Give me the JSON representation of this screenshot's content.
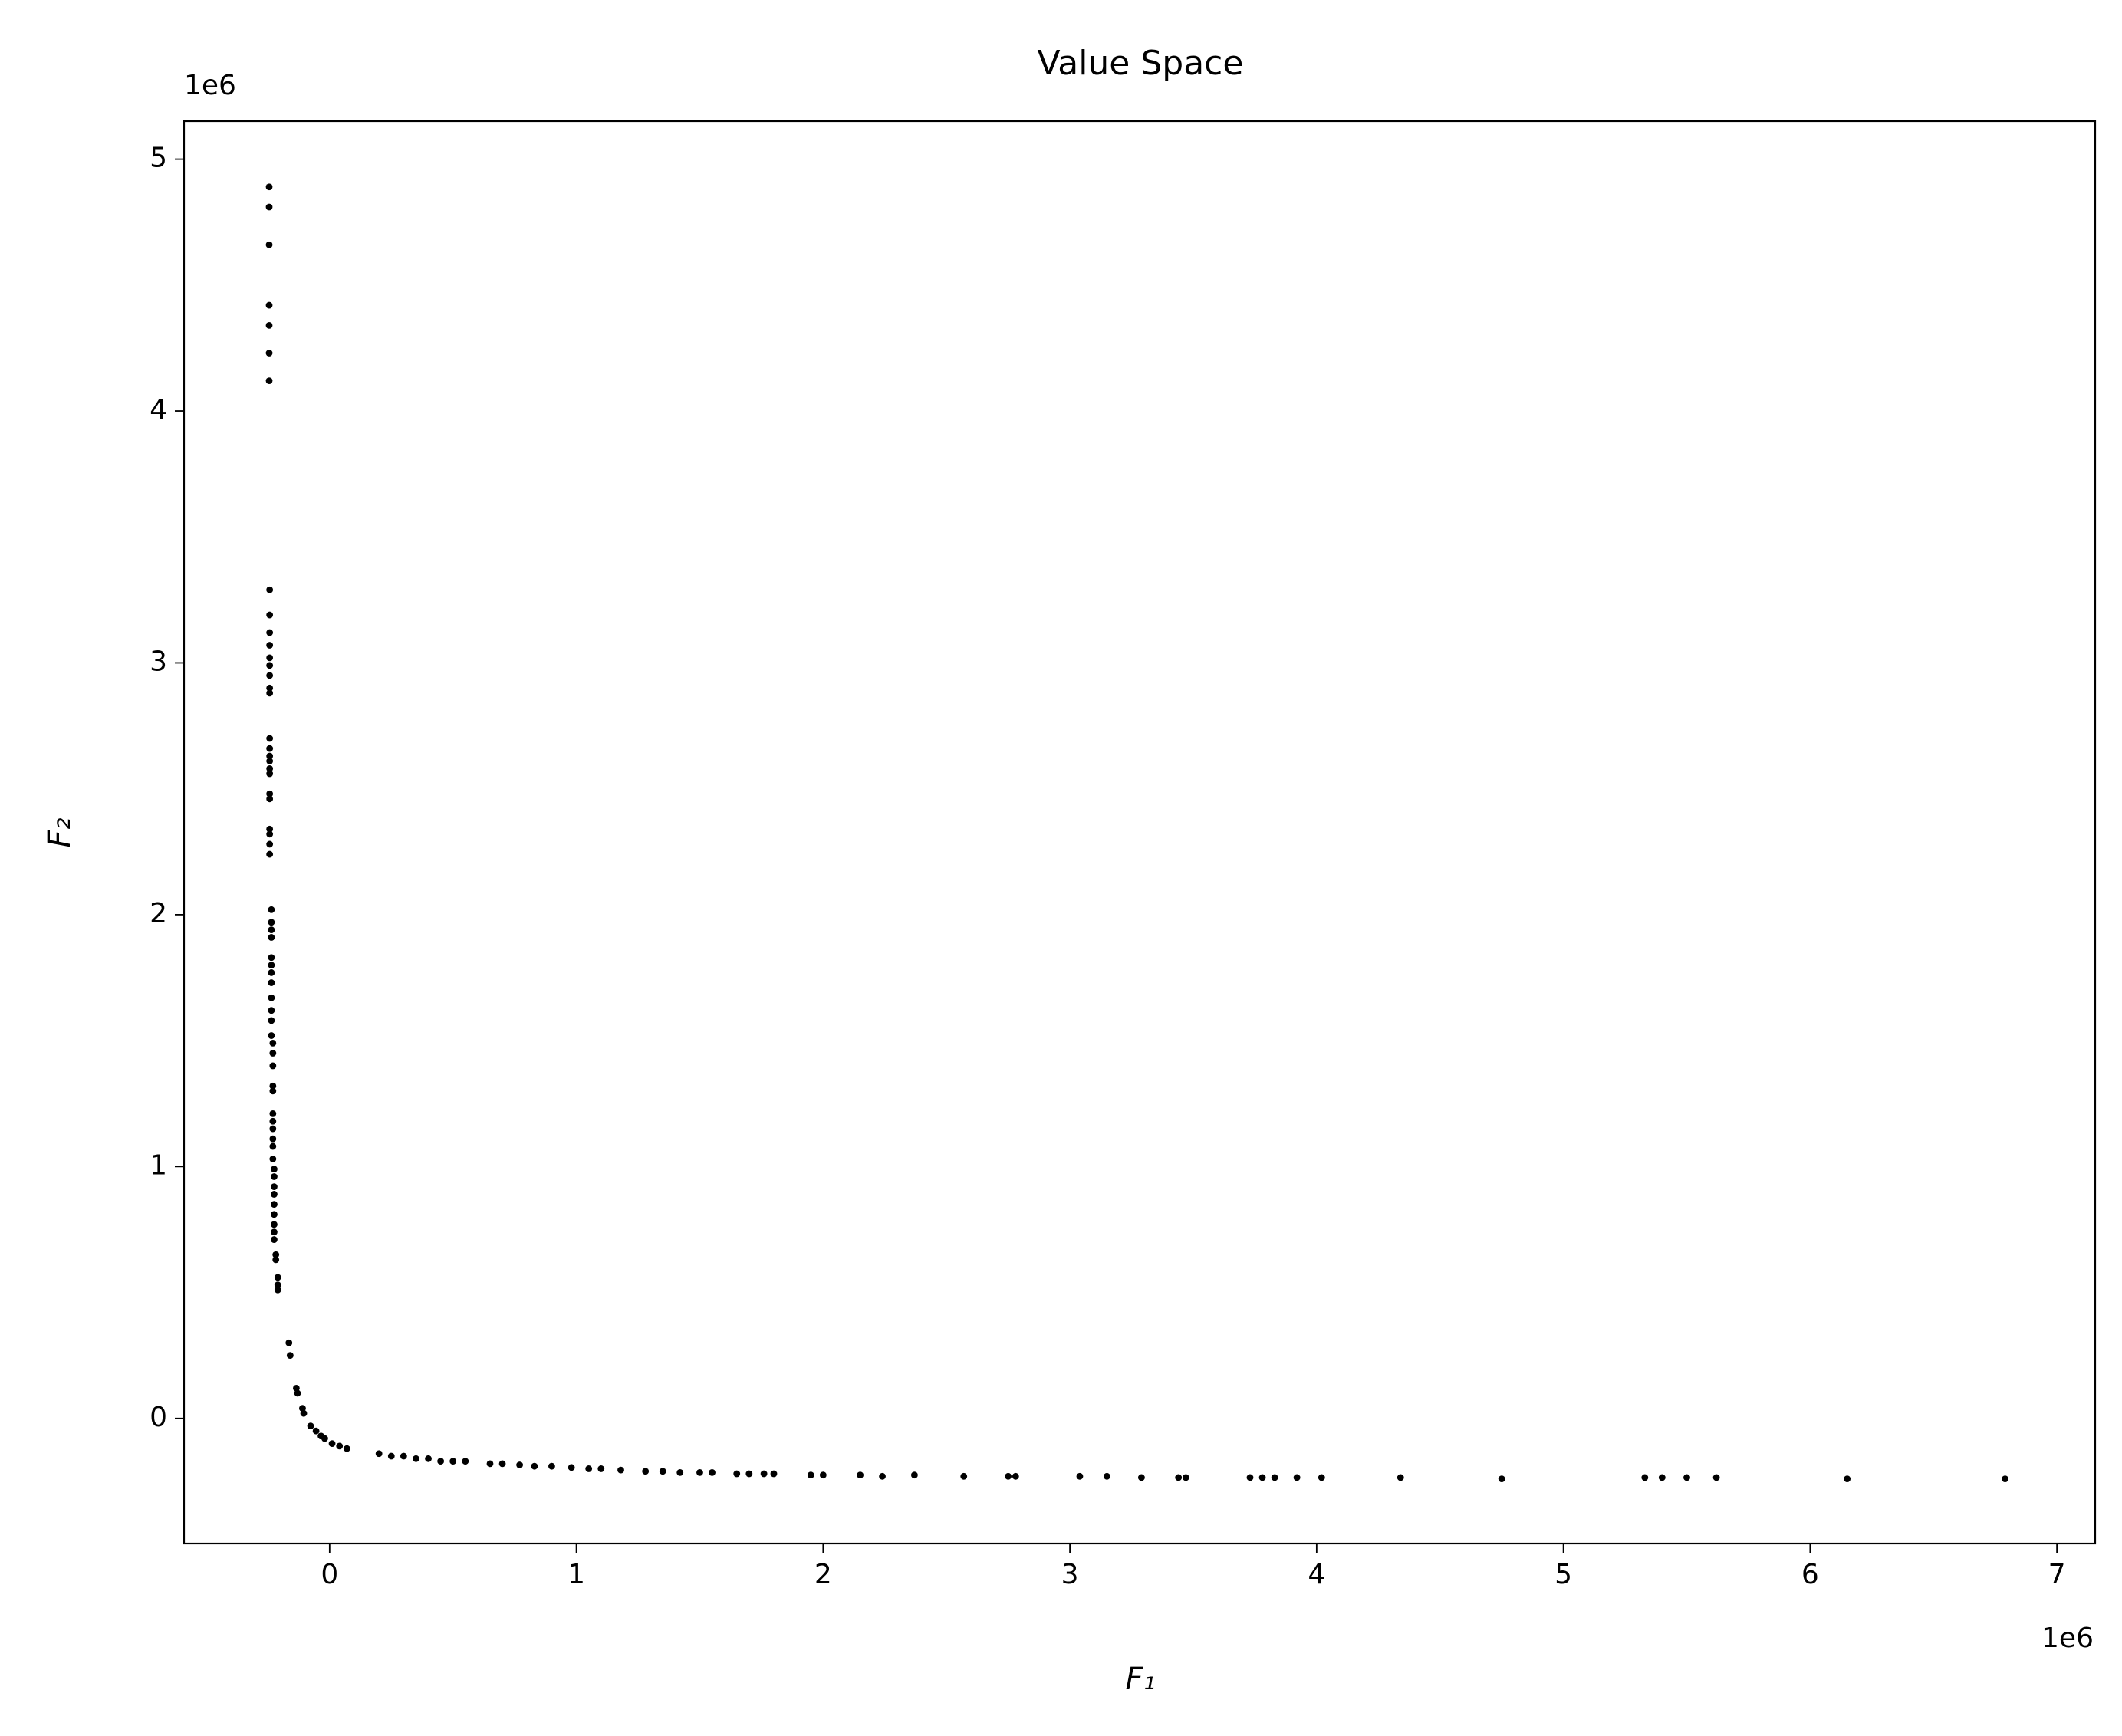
{
  "chart_data": {
    "type": "scatter",
    "title": "Value Space",
    "x_label": "F₁",
    "y_label": "F₂",
    "x_offset_label": "1e6",
    "y_offset_label": "1e6",
    "color": "#000000",
    "xlim": [
      -590000,
      7155000
    ],
    "ylim": [
      -497000,
      5151000
    ],
    "xticks": [
      0,
      {
        "value": 1000000,
        "label": "1"
      },
      {
        "value": 2000000,
        "label": "2"
      },
      {
        "value": 3000000,
        "label": "3"
      },
      {
        "value": 4000000,
        "label": "4"
      },
      {
        "value": 5000000,
        "label": "5"
      },
      {
        "value": 6000000,
        "label": "6"
      },
      {
        "value": 7000000,
        "label": "7"
      }
    ],
    "yticks": [
      0,
      {
        "value": 1000000,
        "label": "1"
      },
      {
        "value": 2000000,
        "label": "2"
      },
      {
        "value": 3000000,
        "label": "3"
      },
      {
        "value": 4000000,
        "label": "4"
      },
      {
        "value": 5000000,
        "label": "5"
      }
    ],
    "x": [
      -245000,
      -245000,
      -245000,
      -245000,
      -245000,
      -245000,
      -245000,
      -243000,
      -243000,
      -243000,
      -243000,
      -243000,
      -243000,
      -243000,
      -243000,
      -243000,
      -243000,
      -243000,
      -243000,
      -243000,
      -243000,
      -243000,
      -243000,
      -243000,
      -243000,
      -243000,
      -243000,
      -243000,
      -236000,
      -236000,
      -236000,
      -236000,
      -236000,
      -236000,
      -236000,
      -236000,
      -236000,
      -236000,
      -236000,
      -236000,
      -230000,
      -230000,
      -230000,
      -230000,
      -230000,
      -230000,
      -230000,
      -230000,
      -230000,
      -230000,
      -230000,
      -225000,
      -225000,
      -225000,
      -225000,
      -225000,
      -225000,
      -225000,
      -225000,
      -225000,
      -218000,
      -218000,
      -210000,
      -210000,
      -210000,
      -165000,
      -160000,
      -135000,
      -130000,
      -110000,
      -105000,
      -77000,
      -55000,
      -35000,
      -20000,
      10000,
      40000,
      70000,
      200000,
      250000,
      300000,
      350000,
      400000,
      450000,
      500000,
      550000,
      650000,
      700000,
      770000,
      830000,
      900000,
      980000,
      1050000,
      1100000,
      1180000,
      1280000,
      1350000,
      1420000,
      1500000,
      1550000,
      1650000,
      1700000,
      1760000,
      1800000,
      1950000,
      2000000,
      2150000,
      2240000,
      2370000,
      2570000,
      2750000,
      2780000,
      3040000,
      3150000,
      3290000,
      3440000,
      3470000,
      3730000,
      3780000,
      3830000,
      3920000,
      4020000,
      4340000,
      4750000,
      5330000,
      5400000,
      5500000,
      5620000,
      6150000,
      6790000
    ],
    "values": [
      4890000,
      4810000,
      4660000,
      4420000,
      4340000,
      4230000,
      4120000,
      3290000,
      3190000,
      3120000,
      3070000,
      3020000,
      2990000,
      2950000,
      2900000,
      2880000,
      2700000,
      2660000,
      2630000,
      2610000,
      2580000,
      2560000,
      2480000,
      2460000,
      2340000,
      2320000,
      2280000,
      2240000,
      2020000,
      1970000,
      1940000,
      1910000,
      1830000,
      1800000,
      1770000,
      1730000,
      1670000,
      1620000,
      1580000,
      1520000,
      1490000,
      1450000,
      1400000,
      1320000,
      1300000,
      1210000,
      1180000,
      1150000,
      1110000,
      1080000,
      1030000,
      990000,
      960000,
      920000,
      890000,
      850000,
      810000,
      770000,
      740000,
      710000,
      650000,
      630000,
      560000,
      530000,
      510000,
      300000,
      250000,
      120000,
      100000,
      40000,
      20000,
      -30000,
      -50000,
      -70000,
      -80000,
      -100000,
      -110000,
      -120000,
      -140000,
      -150000,
      -150000,
      -160000,
      -160000,
      -170000,
      -170000,
      -170000,
      -180000,
      -180000,
      -185000,
      -190000,
      -190000,
      -195000,
      -200000,
      -200000,
      -205000,
      -210000,
      -210000,
      -215000,
      -215000,
      -215000,
      -220000,
      -220000,
      -220000,
      -220000,
      -225000,
      -225000,
      -225000,
      -230000,
      -225000,
      -230000,
      -230000,
      -230000,
      -230000,
      -230000,
      -235000,
      -235000,
      -235000,
      -235000,
      -235000,
      -235000,
      -235000,
      -235000,
      -235000,
      -240000,
      -235000,
      -235000,
      -235000,
      -235000,
      -240000,
      -240000
    ]
  }
}
